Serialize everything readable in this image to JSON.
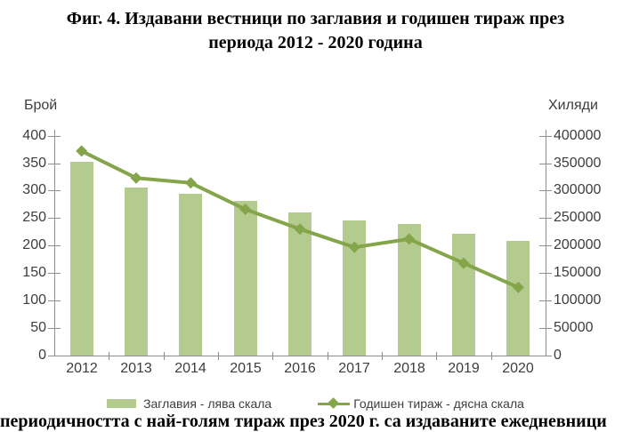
{
  "title": {
    "line1": "Фиг. 4. Издавани вестници по заглавия и годишен тираж през",
    "line2": "периода 2012 - 2020 година"
  },
  "footer_text": "периодичността с най-голям тираж през 2020 г. са издаваните ежедневници",
  "colors": {
    "bar": "#b4cb8f",
    "line": "#85a54b",
    "axis": "#8e8e8e",
    "tick_text": "#3d3d3d"
  },
  "chart_data": {
    "type": "combo",
    "categories": [
      "2012",
      "2013",
      "2014",
      "2015",
      "2016",
      "2017",
      "2018",
      "2019",
      "2020"
    ],
    "series": [
      {
        "name": "Заглавия - лява скала",
        "type": "bar",
        "axis": "left",
        "values": [
          353,
          306,
          294,
          281,
          261,
          245,
          239,
          221,
          208
        ]
      },
      {
        "name": "Годишен тираж - дясна скала",
        "type": "line",
        "axis": "right",
        "values": [
          372000,
          323000,
          314000,
          266000,
          230000,
          197000,
          212000,
          168000,
          124000
        ]
      }
    ],
    "left_axis": {
      "label": "Брой",
      "min": 0,
      "max": 400,
      "step": 50
    },
    "right_axis": {
      "label": "Хиляди",
      "min": 0,
      "max": 400000,
      "step": 50000
    },
    "grid": false,
    "legend_position": "bottom"
  }
}
